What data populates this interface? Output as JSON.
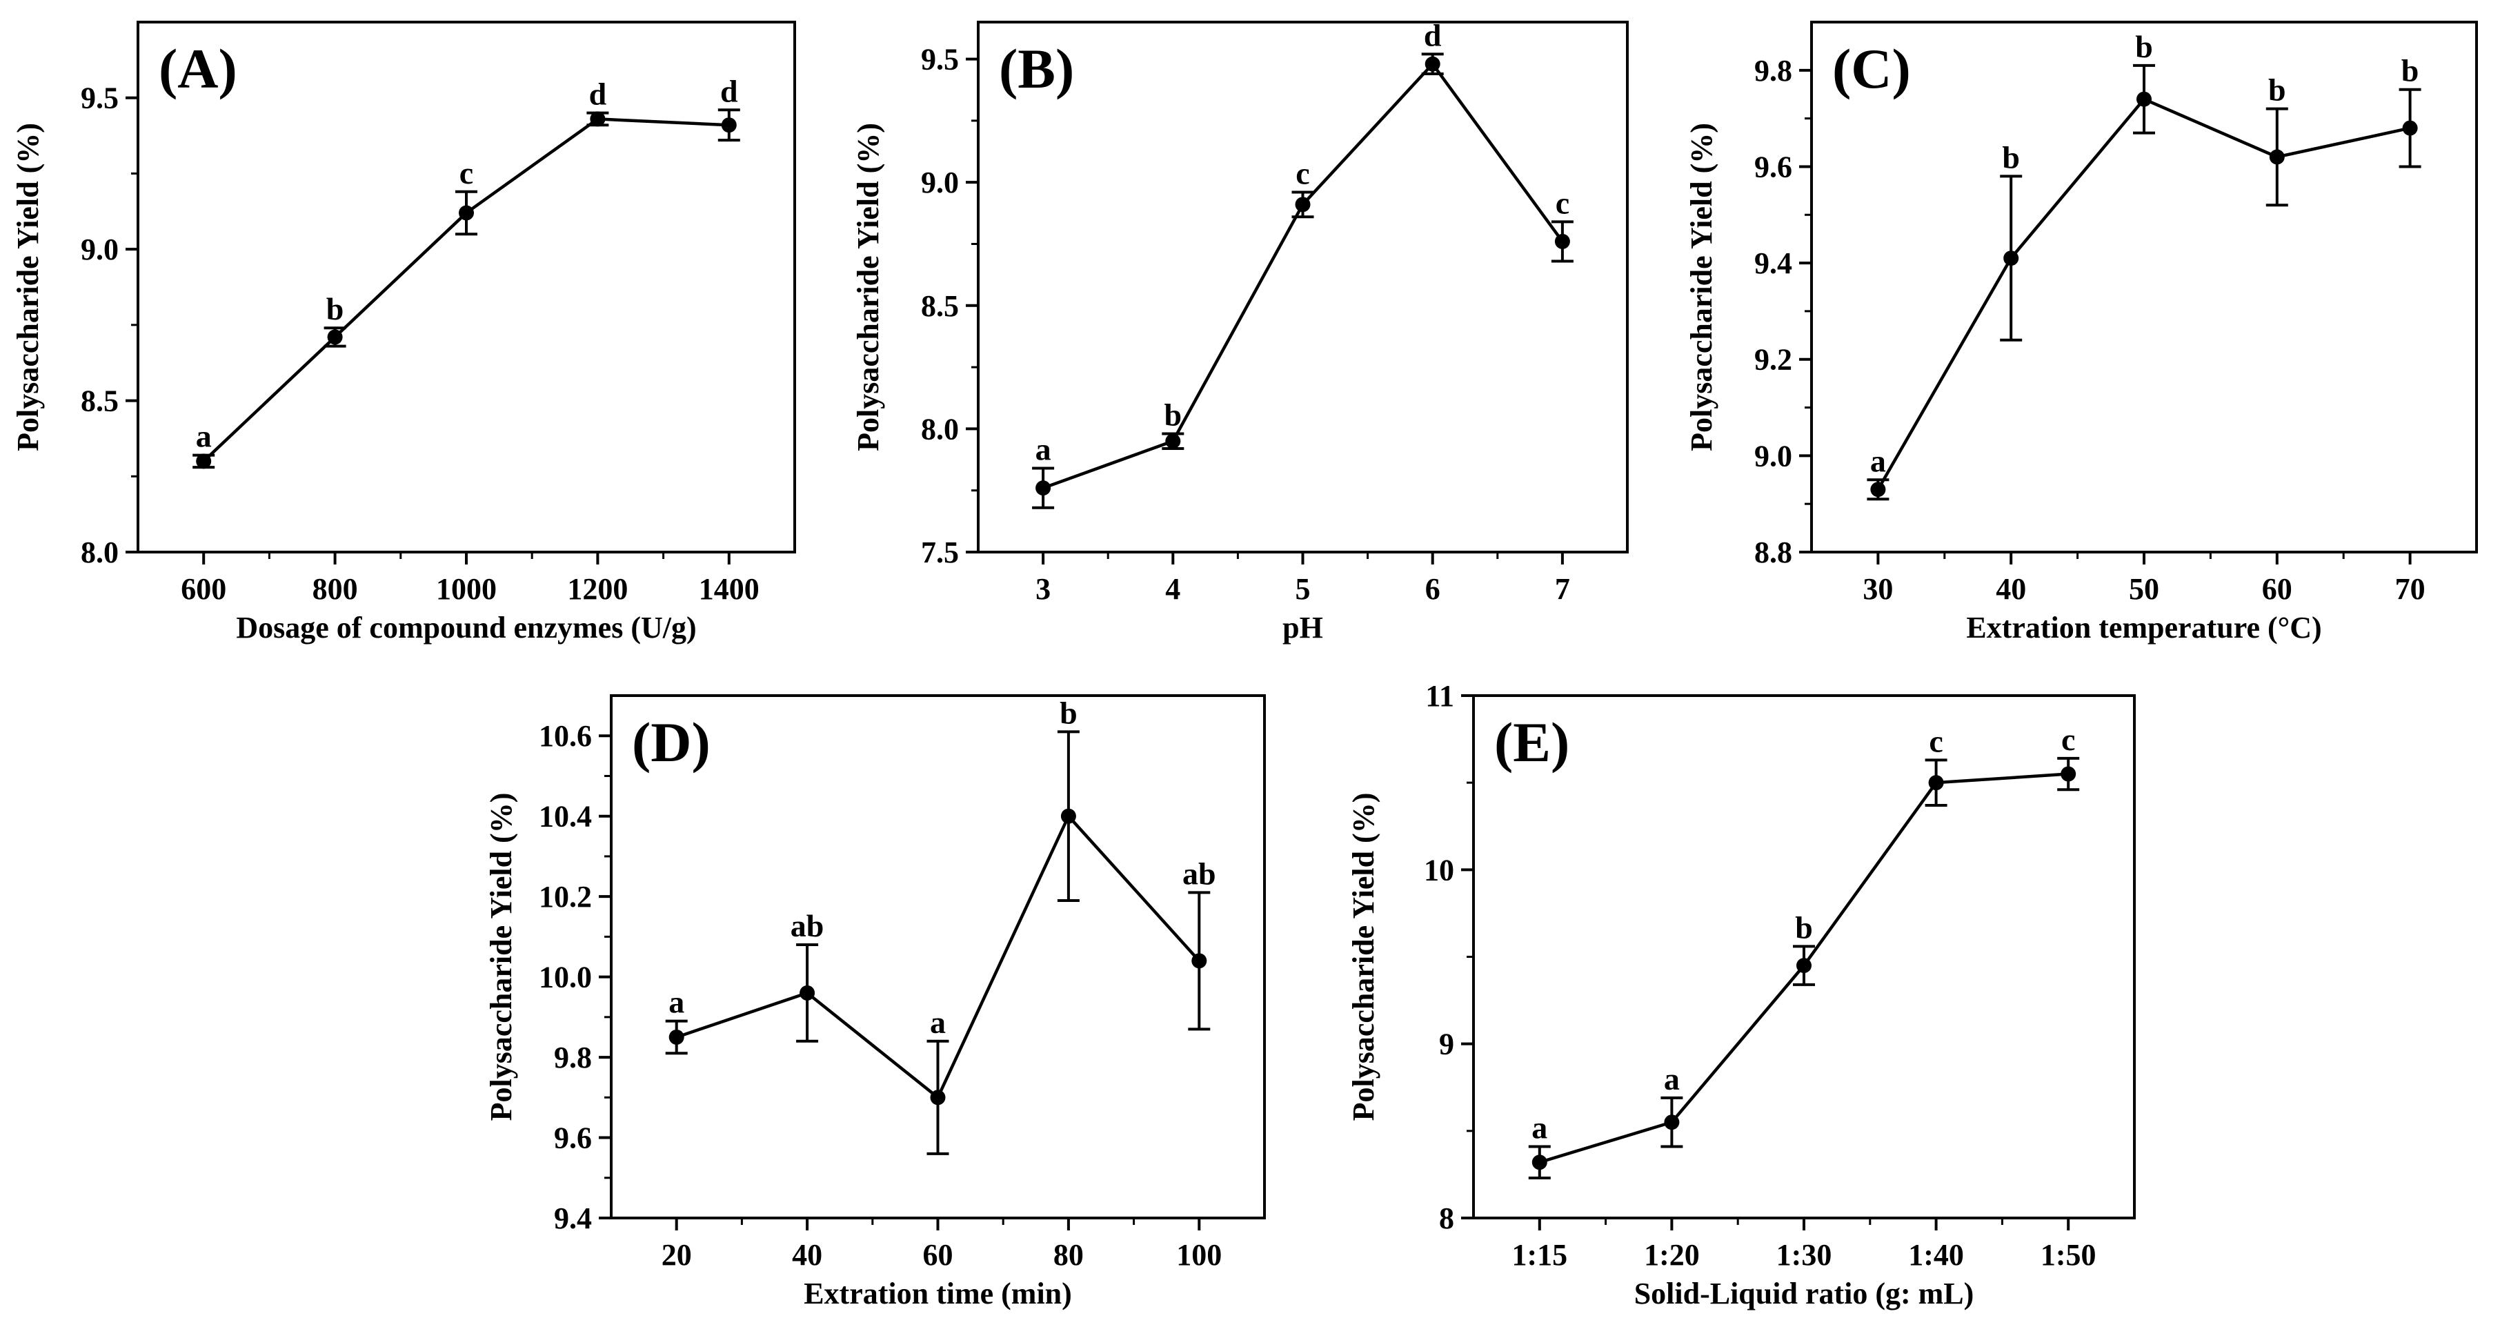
{
  "figure": {
    "style": {
      "line_color": "#000000",
      "marker_color": "#000000",
      "background": "#ffffff"
    }
  },
  "chart_data": [
    {
      "type": "line",
      "panel_label": "(A)",
      "xlabel": "Dosage of compound enzymes (U/g)",
      "ylabel": "Polysaccharide Yield (%)",
      "categories": [
        "600",
        "800",
        "1000",
        "1200",
        "1400"
      ],
      "x": [
        600,
        800,
        1000,
        1200,
        1400
      ],
      "xlim": [
        500,
        1500
      ],
      "values": [
        8.3,
        8.71,
        9.12,
        9.43,
        9.41
      ],
      "errors": [
        0.02,
        0.03,
        0.07,
        0.02,
        0.05
      ],
      "significance": [
        "a",
        "b",
        "c",
        "d",
        "d"
      ],
      "ylim": [
        8.0,
        9.75
      ],
      "yticks": [
        8.0,
        8.5,
        9.0,
        9.5
      ],
      "ytick_labels": [
        "8.0",
        "8.5",
        "9.0",
        "9.5"
      ]
    },
    {
      "type": "line",
      "panel_label": "(B)",
      "xlabel": "pH",
      "ylabel": "Polysaccharide Yield (%)",
      "categories": [
        "3",
        "4",
        "5",
        "6",
        "7"
      ],
      "x": [
        3,
        4,
        5,
        6,
        7
      ],
      "xlim": [
        2.5,
        7.5
      ],
      "values": [
        7.76,
        7.95,
        8.91,
        9.48,
        8.76
      ],
      "errors": [
        0.08,
        0.03,
        0.05,
        0.04,
        0.08
      ],
      "significance": [
        "a",
        "b",
        "c",
        "d",
        "c"
      ],
      "ylim": [
        7.5,
        9.65
      ],
      "yticks": [
        7.5,
        8.0,
        8.5,
        9.0,
        9.5
      ],
      "ytick_labels": [
        "7.5",
        "8.0",
        "8.5",
        "9.0",
        "9.5"
      ]
    },
    {
      "type": "line",
      "panel_label": "(C)",
      "xlabel": "Extration temperature (°C)",
      "ylabel": "Polysaccharide Yield (%)",
      "categories": [
        "30",
        "40",
        "50",
        "60",
        "70"
      ],
      "x": [
        30,
        40,
        50,
        60,
        70
      ],
      "xlim": [
        25,
        75
      ],
      "values": [
        8.93,
        9.41,
        9.74,
        9.62,
        9.68
      ],
      "errors": [
        0.02,
        0.17,
        0.07,
        0.1,
        0.08
      ],
      "significance": [
        "a",
        "b",
        "b",
        "b",
        "b"
      ],
      "ylim": [
        8.8,
        9.9
      ],
      "yticks": [
        8.8,
        9.0,
        9.2,
        9.4,
        9.6,
        9.8
      ],
      "ytick_labels": [
        "8.8",
        "9.0",
        "9.2",
        "9.4",
        "9.6",
        "9.8"
      ]
    },
    {
      "type": "line",
      "panel_label": "(D)",
      "xlabel": "Extration time (min)",
      "ylabel": "Polysaccharide Yield (%)",
      "categories": [
        "20",
        "40",
        "60",
        "80",
        "100"
      ],
      "x": [
        20,
        40,
        60,
        80,
        100
      ],
      "xlim": [
        10,
        110
      ],
      "values": [
        9.85,
        9.96,
        9.7,
        10.4,
        10.04
      ],
      "errors": [
        0.04,
        0.12,
        0.14,
        0.21,
        0.17
      ],
      "significance": [
        "a",
        "ab",
        "a",
        "b",
        "ab"
      ],
      "ylim": [
        9.4,
        10.7
      ],
      "yticks": [
        9.4,
        9.6,
        9.8,
        10.0,
        10.2,
        10.4,
        10.6
      ],
      "ytick_labels": [
        "9.4",
        "9.6",
        "9.8",
        "10.0",
        "10.2",
        "10.4",
        "10.6"
      ]
    },
    {
      "type": "line",
      "panel_label": "(E)",
      "xlabel": "Solid-Liquid ratio (g: mL)",
      "ylabel": "Polysaccharide Yield (%)",
      "categories": [
        "1:15",
        "1:20",
        "1:30",
        "1:40",
        "1:50"
      ],
      "x": [
        0,
        1,
        2,
        3,
        4
      ],
      "xlim": [
        -0.5,
        4.5
      ],
      "values": [
        8.32,
        8.55,
        9.45,
        10.5,
        10.55
      ],
      "errors": [
        0.09,
        0.14,
        0.11,
        0.13,
        0.09
      ],
      "significance": [
        "a",
        "a",
        "b",
        "c",
        "c"
      ],
      "ylim": [
        8,
        11
      ],
      "yticks": [
        8,
        9,
        10,
        11
      ],
      "ytick_labels": [
        "8",
        "9",
        "10",
        "11"
      ]
    }
  ]
}
